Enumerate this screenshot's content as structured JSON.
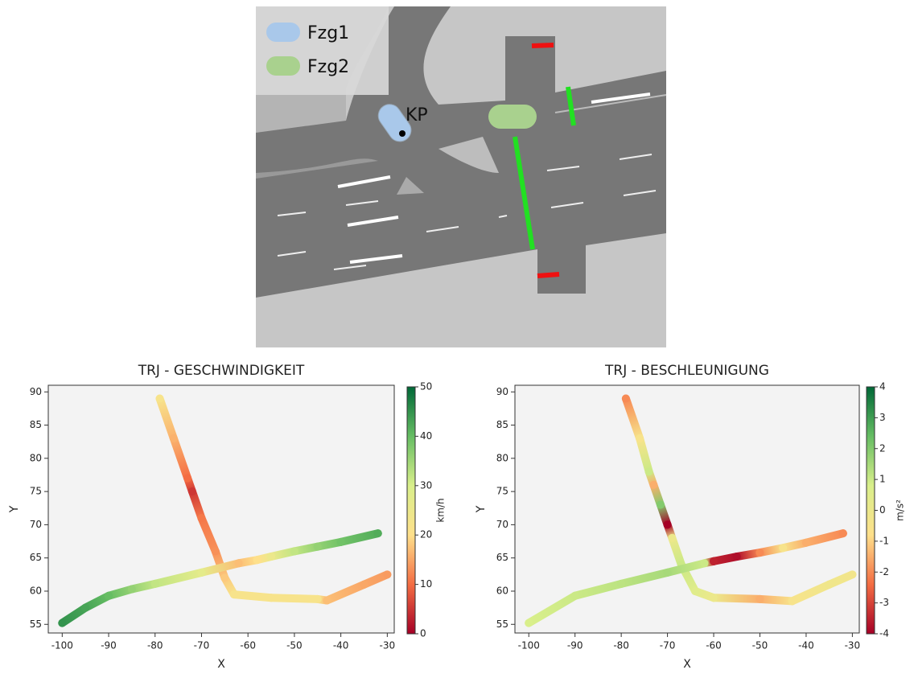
{
  "scene": {
    "legend": [
      "Fzg1",
      "Fzg2"
    ],
    "point_label": "KP"
  },
  "chart_data": [
    {
      "type": "scatter",
      "title": "TRJ - GESCHWINDIGKEIT",
      "xlabel": "X",
      "ylabel": "Y",
      "xlim": [
        -103,
        -28.5
      ],
      "ylim": [
        53.7,
        91
      ],
      "xticks": [
        -100,
        -90,
        -80,
        -70,
        -60,
        -50,
        -40,
        -30
      ],
      "yticks": [
        55,
        60,
        65,
        70,
        75,
        80,
        85,
        90
      ],
      "colorbar": {
        "label": "km/h",
        "lim": [
          0,
          50
        ],
        "ticks": [
          0,
          10,
          20,
          30,
          40,
          50
        ],
        "colormap": [
          "#a50026",
          "#f46d43",
          "#fee08b",
          "#d9ef8b",
          "#66bd63",
          "#006837"
        ]
      },
      "series": [
        {
          "x": [
            -79,
            -76,
            -73,
            -72,
            -70,
            -67,
            -65,
            -63,
            -55,
            -45,
            -43,
            -35,
            -30
          ],
          "y": [
            89,
            83,
            77,
            75,
            71,
            66,
            62,
            59.5,
            59,
            58.8,
            58.6,
            61,
            62.5
          ],
          "c": [
            22,
            16,
            10,
            5,
            11,
            13,
            18,
            22,
            22,
            22,
            17,
            15,
            14
          ]
        },
        {
          "x": [
            -100,
            -95,
            -90,
            -85,
            -80,
            -70,
            -62,
            -58,
            -55,
            -50,
            -45,
            -40,
            -32
          ],
          "y": [
            55.2,
            57.5,
            59.3,
            60.3,
            61.1,
            62.8,
            64.2,
            64.7,
            65.2,
            66,
            66.7,
            67.4,
            68.7
          ],
          "c": [
            45,
            43,
            40,
            36,
            32,
            27,
            17,
            20,
            25,
            32,
            36,
            39,
            42
          ]
        }
      ]
    },
    {
      "type": "scatter",
      "title": "TRJ - BESCHLEUNIGUNG",
      "xlabel": "X",
      "ylabel": "Y",
      "xlim": [
        -103,
        -28.5
      ],
      "ylim": [
        53.7,
        91
      ],
      "xticks": [
        -100,
        -90,
        -80,
        -70,
        -60,
        -50,
        -40,
        -30
      ],
      "yticks": [
        55,
        60,
        65,
        70,
        75,
        80,
        85,
        90
      ],
      "colorbar": {
        "label": "m/s²",
        "lim": [
          -4,
          4
        ],
        "ticks": [
          -4,
          -3,
          -2,
          -1,
          0,
          1,
          2,
          3,
          4
        ],
        "colormap": [
          "#a50026",
          "#f46d43",
          "#fee08b",
          "#d9ef8b",
          "#66bd63",
          "#006837"
        ]
      },
      "series": [
        {
          "x": [
            -79,
            -76,
            -74,
            -73,
            -71.5,
            -70,
            -69,
            -67,
            -64,
            -60,
            -50,
            -43,
            -35,
            -30
          ],
          "y": [
            89,
            83,
            78,
            76,
            73,
            70,
            68,
            64,
            60,
            59,
            58.8,
            58.5,
            61,
            62.5
          ],
          "c": [
            -2,
            -0.5,
            1,
            -1.5,
            2,
            -4,
            0,
            1,
            0.5,
            0,
            -1.5,
            -0.5,
            -0.2,
            -0.3
          ]
        },
        {
          "x": [
            -100,
            -90,
            -80,
            -70,
            -62,
            -60,
            -55,
            -50,
            -45,
            -40,
            -32
          ],
          "y": [
            55.2,
            59.3,
            61.1,
            62.8,
            64.2,
            64.5,
            65.2,
            65.8,
            66.5,
            67.3,
            68.7
          ],
          "c": [
            0.8,
            1,
            1.2,
            1.5,
            1,
            -3.5,
            -3.8,
            -2,
            -0.5,
            -1.5,
            -2
          ]
        }
      ]
    }
  ]
}
